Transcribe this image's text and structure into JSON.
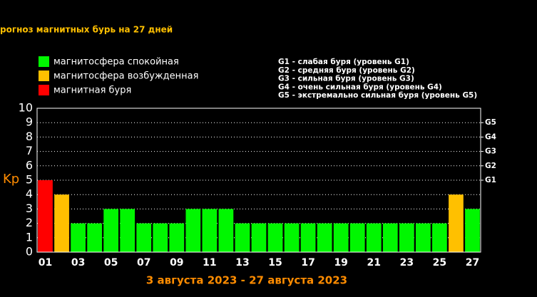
{
  "chart_data": {
    "type": "bar",
    "title": "рогноз магнитных бурь на 27 дней",
    "legend": [
      {
        "label": "магнитосфера спокойная",
        "color": "#00f700"
      },
      {
        "label": "магнитосфера возбужденная",
        "color": "#ffc000"
      },
      {
        "label": "магнитная буря",
        "color": "#ff0000"
      }
    ],
    "g_scale": [
      "G1 - слабая буря (уровень G1)",
      "G2 - средняя буря (уровень G2)",
      "G3 - сильная буря (уровень G3)",
      "G4 - очень сильная буря (уровень G4)",
      "G5 - экстремально сильная буря (уровень G5)"
    ],
    "categories": [
      "01",
      null,
      "03",
      null,
      "05",
      null,
      "07",
      null,
      "09",
      null,
      "11",
      null,
      "13",
      null,
      "15",
      null,
      "17",
      null,
      "19",
      null,
      "21",
      null,
      "23",
      null,
      "25",
      null,
      "27"
    ],
    "values": [
      5,
      4,
      2,
      2,
      3,
      3,
      2,
      2,
      2,
      3,
      3,
      3,
      2,
      2,
      2,
      2,
      2,
      2,
      2,
      2,
      2,
      2,
      2,
      2,
      2,
      4,
      3
    ],
    "bar_colors": [
      "#ff0000",
      "#ffc000",
      "#00f700",
      "#00f700",
      "#00f700",
      "#00f700",
      "#00f700",
      "#00f700",
      "#00f700",
      "#00f700",
      "#00f700",
      "#00f700",
      "#00f700",
      "#00f700",
      "#00f700",
      "#00f700",
      "#00f700",
      "#00f700",
      "#00f700",
      "#00f700",
      "#00f700",
      "#00f700",
      "#00f700",
      "#00f700",
      "#00f700",
      "#ffc000",
      "#00f700"
    ],
    "y_label": "Kp",
    "x_label": "3 августа 2023 - 27 августа 2023",
    "ylim": [
      0,
      10
    ],
    "yticks": [
      0,
      1,
      2,
      3,
      4,
      5,
      6,
      7,
      8,
      9,
      10
    ],
    "y2lim": [
      0,
      10
    ],
    "y2ticks": [
      {
        "value": 5,
        "label": "G1"
      },
      {
        "value": 6,
        "label": "G2"
      },
      {
        "value": 7,
        "label": "G3"
      },
      {
        "value": 8,
        "label": "G4"
      },
      {
        "value": 9,
        "label": "G5"
      }
    ],
    "grid": true
  }
}
